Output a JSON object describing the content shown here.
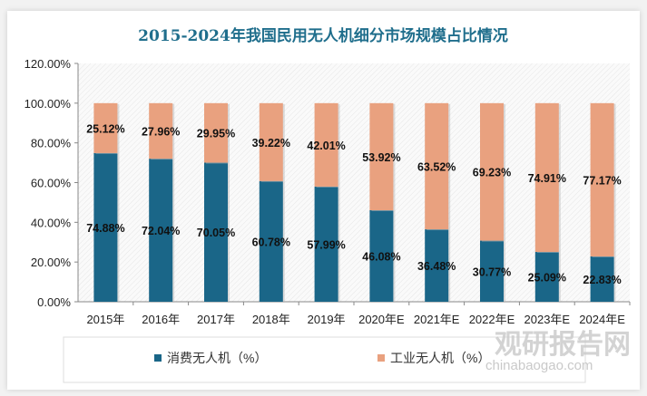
{
  "chart_data": {
    "type": "bar",
    "stacked": true,
    "title": "2015-2024年我国民用无人机细分市场规模占比情况",
    "categories": [
      "2015年",
      "2016年",
      "2017年",
      "2018年",
      "2019年",
      "2020年E",
      "2021年E",
      "2022年E",
      "2023年E",
      "2024年E"
    ],
    "series": [
      {
        "name": "消费无人机（%）",
        "color": "#1a6688",
        "values": [
          74.88,
          72.04,
          70.05,
          60.78,
          57.99,
          46.08,
          36.48,
          30.77,
          25.09,
          22.83
        ]
      },
      {
        "name": "工业无人机（%）",
        "color": "#e9a17f",
        "values": [
          25.12,
          27.96,
          29.95,
          39.22,
          42.01,
          53.92,
          63.52,
          69.23,
          74.91,
          77.17
        ]
      }
    ],
    "ylim": [
      0,
      120
    ],
    "yticks": [
      "0.00%",
      "20.00%",
      "40.00%",
      "60.00%",
      "80.00%",
      "100.00%",
      "120.00%"
    ],
    "data_label_suffix": "%",
    "legend_position": "bottom",
    "grid": false
  },
  "watermark": {
    "text": "观研报告网",
    "sub": "chinabaogao.com"
  }
}
